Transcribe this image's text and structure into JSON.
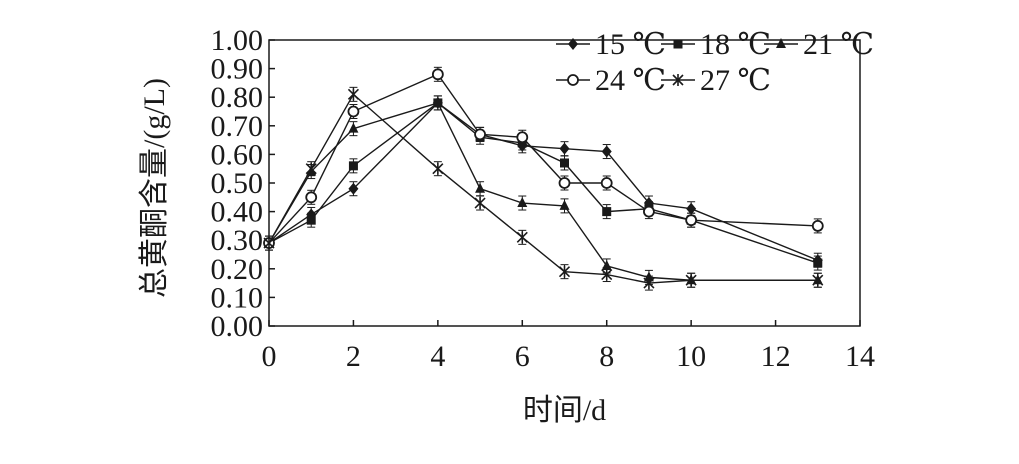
{
  "chart_data": {
    "type": "line",
    "xlabel": "时间/d",
    "ylabel": "总黄酮含量/(g/L)",
    "xlim": [
      0,
      14
    ],
    "ylim": [
      0,
      1.0
    ],
    "xticks": [
      "0",
      "2",
      "4",
      "6",
      "8",
      "10",
      "12",
      "14"
    ],
    "yticks": [
      "0.00",
      "0.10",
      "0.20",
      "0.30",
      "0.40",
      "0.50",
      "0.60",
      "0.70",
      "0.80",
      "0.90",
      "1.00"
    ],
    "grid": false,
    "legend_position": "top-right",
    "series": [
      {
        "name": "15 ℃",
        "marker": "diamond",
        "points": [
          [
            0,
            0.29
          ],
          [
            1,
            0.39
          ],
          [
            2,
            0.48
          ],
          [
            4,
            0.78
          ],
          [
            5,
            0.67
          ],
          [
            6,
            0.63
          ],
          [
            7,
            0.62
          ],
          [
            8,
            0.61
          ],
          [
            9,
            0.43
          ],
          [
            10,
            0.41
          ],
          [
            13,
            0.23
          ]
        ]
      },
      {
        "name": "18 ℃",
        "marker": "square",
        "points": [
          [
            0,
            0.29
          ],
          [
            1,
            0.37
          ],
          [
            2,
            0.56
          ],
          [
            4,
            0.78
          ],
          [
            5,
            0.66
          ],
          [
            6,
            0.64
          ],
          [
            7,
            0.57
          ],
          [
            8,
            0.4
          ],
          [
            9,
            0.41
          ],
          [
            10,
            0.37
          ],
          [
            13,
            0.22
          ]
        ]
      },
      {
        "name": "21 ℃",
        "marker": "triangle",
        "points": [
          [
            0,
            0.29
          ],
          [
            1,
            0.54
          ],
          [
            2,
            0.69
          ],
          [
            4,
            0.78
          ],
          [
            5,
            0.48
          ],
          [
            6,
            0.43
          ],
          [
            7,
            0.42
          ],
          [
            8,
            0.21
          ],
          [
            9,
            0.17
          ],
          [
            10,
            0.16
          ],
          [
            13,
            0.16
          ]
        ]
      },
      {
        "name": "24 ℃",
        "marker": "circle",
        "points": [
          [
            0,
            0.29
          ],
          [
            1,
            0.45
          ],
          [
            2,
            0.75
          ],
          [
            4,
            0.88
          ],
          [
            5,
            0.67
          ],
          [
            6,
            0.66
          ],
          [
            7,
            0.5
          ],
          [
            8,
            0.5
          ],
          [
            9,
            0.4
          ],
          [
            10,
            0.37
          ],
          [
            13,
            0.35
          ]
        ]
      },
      {
        "name": "27 ℃",
        "marker": "asterisk",
        "points": [
          [
            0,
            0.29
          ],
          [
            1,
            0.55
          ],
          [
            2,
            0.81
          ],
          [
            4,
            0.55
          ],
          [
            5,
            0.43
          ],
          [
            6,
            0.31
          ],
          [
            7,
            0.19
          ],
          [
            8,
            0.18
          ],
          [
            9,
            0.15
          ],
          [
            10,
            0.16
          ],
          [
            13,
            0.16
          ]
        ]
      }
    ]
  }
}
